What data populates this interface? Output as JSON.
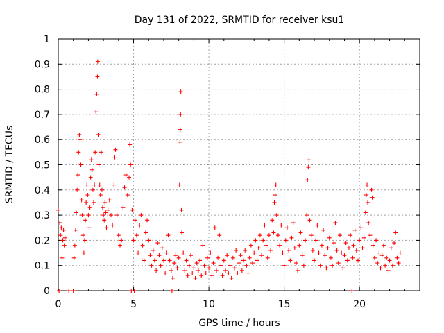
{
  "chart_data": {
    "type": "scatter",
    "title": "Day 131 of 2022, SRMTID for receiver ksu1",
    "xlabel": "GPS time / hours",
    "ylabel": "SRMTID / TECUs",
    "xlim": [
      0,
      24
    ],
    "ylim": [
      0,
      1
    ],
    "x_ticks": [
      0,
      5,
      10,
      15,
      20
    ],
    "y_ticks": [
      0,
      0.1,
      0.2,
      0.3,
      0.4,
      0.5,
      0.6,
      0.7,
      0.8,
      0.9,
      1
    ],
    "x_tick_labels": [
      "0",
      "5",
      "10",
      "15",
      "20"
    ],
    "y_tick_labels": [
      "0",
      "0.1",
      "0.2",
      "0.3",
      "0.4",
      "0.5",
      "0.6",
      "0.7",
      "0.8",
      "0.9",
      "1"
    ],
    "grid": true,
    "marker": "+",
    "color": "#ff0000",
    "series": [
      {
        "name": "SRMTID",
        "points": [
          [
            0.0,
            0.32
          ],
          [
            0.05,
            0.0
          ],
          [
            0.1,
            0.27
          ],
          [
            0.15,
            0.22
          ],
          [
            0.2,
            0.25
          ],
          [
            0.25,
            0.13
          ],
          [
            0.3,
            0.2
          ],
          [
            0.35,
            0.24
          ],
          [
            0.4,
            0.18
          ],
          [
            0.45,
            0.21
          ],
          [
            0.7,
            0.0
          ],
          [
            1.0,
            0.0
          ],
          [
            1.05,
            0.13
          ],
          [
            1.1,
            0.18
          ],
          [
            1.15,
            0.24
          ],
          [
            1.2,
            0.31
          ],
          [
            1.25,
            0.4
          ],
          [
            1.3,
            0.46
          ],
          [
            1.35,
            0.55
          ],
          [
            1.4,
            0.62
          ],
          [
            1.45,
            0.6
          ],
          [
            1.5,
            0.5
          ],
          [
            1.55,
            0.36
          ],
          [
            1.6,
            0.3
          ],
          [
            1.65,
            0.22
          ],
          [
            1.7,
            0.15
          ],
          [
            1.75,
            0.2
          ],
          [
            1.8,
            0.28
          ],
          [
            1.85,
            0.35
          ],
          [
            1.9,
            0.42
          ],
          [
            1.95,
            0.38
          ],
          [
            2.0,
            0.3
          ],
          [
            2.05,
            0.25
          ],
          [
            2.1,
            0.33
          ],
          [
            2.15,
            0.45
          ],
          [
            2.2,
            0.52
          ],
          [
            2.25,
            0.48
          ],
          [
            2.3,
            0.4
          ],
          [
            2.35,
            0.35
          ],
          [
            2.4,
            0.42
          ],
          [
            2.45,
            0.55
          ],
          [
            2.5,
            0.71
          ],
          [
            2.55,
            0.78
          ],
          [
            2.6,
            0.85
          ],
          [
            2.62,
            0.91
          ],
          [
            2.65,
            0.62
          ],
          [
            2.7,
            0.5
          ],
          [
            2.75,
            0.42
          ],
          [
            2.8,
            0.38
          ],
          [
            2.85,
            0.55
          ],
          [
            2.9,
            0.4
          ],
          [
            2.95,
            0.33
          ],
          [
            3.0,
            0.3
          ],
          [
            3.05,
            0.28
          ],
          [
            3.1,
            0.35
          ],
          [
            3.15,
            0.31
          ],
          [
            3.2,
            0.25
          ],
          [
            3.3,
            0.32
          ],
          [
            3.4,
            0.36
          ],
          [
            3.5,
            0.3
          ],
          [
            3.6,
            0.26
          ],
          [
            3.7,
            0.42
          ],
          [
            3.75,
            0.53
          ],
          [
            3.8,
            0.56
          ],
          [
            3.9,
            0.3
          ],
          [
            4.0,
            0.22
          ],
          [
            4.1,
            0.18
          ],
          [
            4.2,
            0.2
          ],
          [
            4.3,
            0.33
          ],
          [
            4.4,
            0.41
          ],
          [
            4.5,
            0.46
          ],
          [
            4.6,
            0.38
          ],
          [
            4.7,
            0.45
          ],
          [
            4.75,
            0.58
          ],
          [
            4.8,
            0.5
          ],
          [
            4.85,
            0.0
          ],
          [
            4.9,
            0.32
          ],
          [
            5.0,
            0.2
          ],
          [
            5.05,
            0.0
          ],
          [
            5.1,
            0.28
          ],
          [
            5.2,
            0.22
          ],
          [
            5.3,
            0.15
          ],
          [
            5.4,
            0.26
          ],
          [
            5.5,
            0.3
          ],
          [
            5.6,
            0.18
          ],
          [
            5.7,
            0.12
          ],
          [
            5.8,
            0.23
          ],
          [
            5.9,
            0.28
          ],
          [
            6.0,
            0.2
          ],
          [
            6.1,
            0.14
          ],
          [
            6.2,
            0.1
          ],
          [
            6.3,
            0.16
          ],
          [
            6.4,
            0.12
          ],
          [
            6.5,
            0.08
          ],
          [
            6.6,
            0.19
          ],
          [
            6.7,
            0.14
          ],
          [
            6.8,
            0.1
          ],
          [
            6.9,
            0.17
          ],
          [
            7.0,
            0.12
          ],
          [
            7.1,
            0.07
          ],
          [
            7.2,
            0.15
          ],
          [
            7.3,
            0.22
          ],
          [
            7.4,
            0.12
          ],
          [
            7.5,
            0.08
          ],
          [
            7.55,
            0.0
          ],
          [
            7.6,
            0.05
          ],
          [
            7.7,
            0.11
          ],
          [
            7.8,
            0.14
          ],
          [
            7.9,
            0.09
          ],
          [
            8.0,
            0.13
          ],
          [
            8.05,
            0.42
          ],
          [
            8.08,
            0.59
          ],
          [
            8.1,
            0.64
          ],
          [
            8.12,
            0.7
          ],
          [
            8.14,
            0.79
          ],
          [
            8.18,
            0.32
          ],
          [
            8.2,
            0.23
          ],
          [
            8.3,
            0.15
          ],
          [
            8.4,
            0.08
          ],
          [
            8.5,
            0.12
          ],
          [
            8.6,
            0.06
          ],
          [
            8.7,
            0.1
          ],
          [
            8.8,
            0.14
          ],
          [
            8.9,
            0.07
          ],
          [
            9.0,
            0.09
          ],
          [
            9.1,
            0.05
          ],
          [
            9.2,
            0.11
          ],
          [
            9.3,
            0.08
          ],
          [
            9.4,
            0.12
          ],
          [
            9.5,
            0.06
          ],
          [
            9.6,
            0.18
          ],
          [
            9.7,
            0.1
          ],
          [
            9.8,
            0.07
          ],
          [
            9.9,
            0.13
          ],
          [
            10.0,
            0.09
          ],
          [
            10.1,
            0.15
          ],
          [
            10.2,
            0.06
          ],
          [
            10.3,
            0.11
          ],
          [
            10.4,
            0.25
          ],
          [
            10.5,
            0.08
          ],
          [
            10.6,
            0.13
          ],
          [
            10.7,
            0.22
          ],
          [
            10.8,
            0.1
          ],
          [
            10.9,
            0.06
          ],
          [
            11.0,
            0.12
          ],
          [
            11.1,
            0.08
          ],
          [
            11.2,
            0.14
          ],
          [
            11.3,
            0.07
          ],
          [
            11.4,
            0.1
          ],
          [
            11.5,
            0.05
          ],
          [
            11.6,
            0.13
          ],
          [
            11.7,
            0.09
          ],
          [
            11.8,
            0.16
          ],
          [
            11.9,
            0.07
          ],
          [
            12.0,
            0.11
          ],
          [
            12.1,
            0.14
          ],
          [
            12.2,
            0.08
          ],
          [
            12.3,
            0.12
          ],
          [
            12.4,
            0.16
          ],
          [
            12.5,
            0.1
          ],
          [
            12.6,
            0.07
          ],
          [
            12.7,
            0.13
          ],
          [
            12.8,
            0.18
          ],
          [
            12.9,
            0.11
          ],
          [
            13.0,
            0.15
          ],
          [
            13.1,
            0.2
          ],
          [
            13.2,
            0.12
          ],
          [
            13.3,
            0.17
          ],
          [
            13.4,
            0.22
          ],
          [
            13.5,
            0.14
          ],
          [
            13.6,
            0.2
          ],
          [
            13.7,
            0.26
          ],
          [
            13.8,
            0.18
          ],
          [
            13.9,
            0.13
          ],
          [
            14.0,
            0.22
          ],
          [
            14.1,
            0.16
          ],
          [
            14.2,
            0.28
          ],
          [
            14.3,
            0.23
          ],
          [
            14.35,
            0.35
          ],
          [
            14.4,
            0.38
          ],
          [
            14.45,
            0.42
          ],
          [
            14.5,
            0.3
          ],
          [
            14.6,
            0.22
          ],
          [
            14.7,
            0.18
          ],
          [
            14.8,
            0.26
          ],
          [
            14.9,
            0.15
          ],
          [
            15.0,
            0.1
          ],
          [
            15.1,
            0.2
          ],
          [
            15.2,
            0.25
          ],
          [
            15.3,
            0.16
          ],
          [
            15.4,
            0.12
          ],
          [
            15.5,
            0.21
          ],
          [
            15.6,
            0.27
          ],
          [
            15.7,
            0.17
          ],
          [
            15.8,
            0.11
          ],
          [
            15.9,
            0.08
          ],
          [
            16.0,
            0.18
          ],
          [
            16.1,
            0.23
          ],
          [
            16.2,
            0.14
          ],
          [
            16.3,
            0.1
          ],
          [
            16.4,
            0.2
          ],
          [
            16.5,
            0.3
          ],
          [
            16.55,
            0.44
          ],
          [
            16.6,
            0.49
          ],
          [
            16.65,
            0.52
          ],
          [
            16.7,
            0.28
          ],
          [
            16.8,
            0.22
          ],
          [
            16.9,
            0.16
          ],
          [
            17.0,
            0.12
          ],
          [
            17.1,
            0.2
          ],
          [
            17.2,
            0.26
          ],
          [
            17.3,
            0.15
          ],
          [
            17.4,
            0.1
          ],
          [
            17.5,
            0.18
          ],
          [
            17.6,
            0.24
          ],
          [
            17.7,
            0.14
          ],
          [
            17.8,
            0.09
          ],
          [
            17.9,
            0.17
          ],
          [
            18.0,
            0.21
          ],
          [
            18.1,
            0.13
          ],
          [
            18.2,
            0.1
          ],
          [
            18.3,
            0.19
          ],
          [
            18.4,
            0.27
          ],
          [
            18.5,
            0.16
          ],
          [
            18.6,
            0.11
          ],
          [
            18.7,
            0.22
          ],
          [
            18.8,
            0.15
          ],
          [
            18.9,
            0.09
          ],
          [
            19.0,
            0.14
          ],
          [
            19.1,
            0.19
          ],
          [
            19.2,
            0.12
          ],
          [
            19.3,
            0.17
          ],
          [
            19.4,
            0.22
          ],
          [
            19.5,
            0.0
          ],
          [
            19.55,
            0.13
          ],
          [
            19.6,
            0.18
          ],
          [
            19.7,
            0.24
          ],
          [
            19.8,
            0.16
          ],
          [
            19.9,
            0.12
          ],
          [
            20.0,
            0.2
          ],
          [
            20.1,
            0.25
          ],
          [
            20.2,
            0.17
          ],
          [
            20.3,
            0.21
          ],
          [
            20.4,
            0.31
          ],
          [
            20.45,
            0.38
          ],
          [
            20.5,
            0.42
          ],
          [
            20.55,
            0.35
          ],
          [
            20.6,
            0.27
          ],
          [
            20.7,
            0.22
          ],
          [
            20.8,
            0.4
          ],
          [
            20.85,
            0.37
          ],
          [
            20.9,
            0.18
          ],
          [
            21.0,
            0.13
          ],
          [
            21.1,
            0.2
          ],
          [
            21.2,
            0.11
          ],
          [
            21.3,
            0.15
          ],
          [
            21.4,
            0.09
          ],
          [
            21.5,
            0.14
          ],
          [
            21.6,
            0.18
          ],
          [
            21.7,
            0.1
          ],
          [
            21.8,
            0.13
          ],
          [
            21.9,
            0.08
          ],
          [
            22.0,
            0.12
          ],
          [
            22.1,
            0.17
          ],
          [
            22.2,
            0.1
          ],
          [
            22.3,
            0.19
          ],
          [
            22.4,
            0.23
          ],
          [
            22.5,
            0.13
          ],
          [
            22.6,
            0.11
          ],
          [
            22.7,
            0.15
          ]
        ]
      }
    ]
  }
}
